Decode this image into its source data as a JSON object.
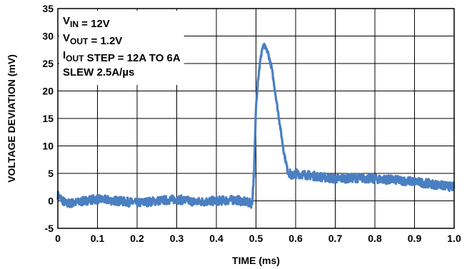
{
  "chart_data": {
    "type": "line",
    "title": "",
    "xlabel": "TIME (ms)",
    "ylabel": "VOLTAGE DEVIATION (mV)",
    "xlim": [
      0,
      1.0
    ],
    "ylim": [
      -5,
      35
    ],
    "x_ticks": [
      "0",
      "0.1",
      "0.2",
      "0.3",
      "0.4",
      "0.5",
      "0.6",
      "0.7",
      "0.8",
      "0.9",
      "1.0"
    ],
    "y_ticks": [
      "-5",
      "0",
      "5",
      "10",
      "15",
      "20",
      "25",
      "30",
      "35"
    ],
    "grid": true,
    "legend": "none",
    "line_color": "#4a7fc1",
    "annotations": [
      {
        "parts": [
          {
            "t": "V"
          },
          {
            "t": "IN",
            "sub": true
          },
          {
            "t": " = 12V"
          }
        ]
      },
      {
        "parts": [
          {
            "t": "V"
          },
          {
            "t": "OUT",
            "sub": true
          },
          {
            "t": " = 1.2V"
          }
        ]
      },
      {
        "parts": [
          {
            "t": "I"
          },
          {
            "t": "OUT",
            "sub": true
          },
          {
            "t": " STEP = 12A TO 6A"
          }
        ]
      },
      {
        "parts": [
          {
            "t": "SLEW 2.5A/µs"
          }
        ]
      }
    ],
    "series": [
      {
        "x": [
          0,
          0.02,
          0.05,
          0.08,
          0.1,
          0.15,
          0.2,
          0.25,
          0.3,
          0.35,
          0.4,
          0.45,
          0.49,
          0.495,
          0.5,
          0.505,
          0.51,
          0.515,
          0.52,
          0.53,
          0.54,
          0.55,
          0.56,
          0.57,
          0.58,
          0.59,
          0.6,
          0.65,
          0.7,
          0.75,
          0.8,
          0.85,
          0.9,
          0.95,
          1.0
        ],
        "y": [
          1.0,
          -0.5,
          -0.3,
          0.2,
          0.3,
          0.0,
          -0.4,
          0.0,
          0.3,
          -0.2,
          0.0,
          0.2,
          -0.5,
          5.0,
          17.0,
          22.0,
          25.0,
          27.5,
          28.3,
          27.0,
          24.0,
          19.0,
          14.0,
          9.0,
          5.5,
          4.5,
          5.0,
          4.5,
          4.0,
          4.2,
          4.0,
          3.8,
          3.5,
          3.0,
          2.5
        ]
      }
    ]
  }
}
